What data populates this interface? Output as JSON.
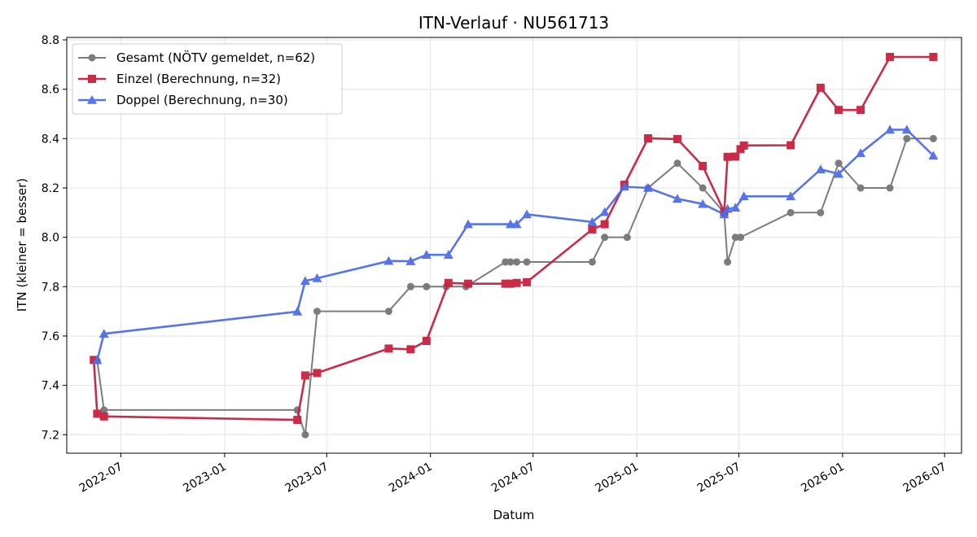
{
  "chart_data": {
    "type": "line",
    "title": "ITN-Verlauf · NU561713",
    "xlabel": "Datum",
    "ylabel": "ITN  (kleiner = besser)",
    "x_axis_type": "date",
    "xlim": [
      "2022-03-27",
      "2026-07-31"
    ],
    "ylim": [
      7.125,
      8.81
    ],
    "x_ticks": [
      "2022-07",
      "2023-01",
      "2023-07",
      "2024-01",
      "2024-07",
      "2025-01",
      "2025-07",
      "2026-01",
      "2026-07"
    ],
    "y_ticks": [
      "7.2",
      "7.4",
      "7.6",
      "7.8",
      "8.0",
      "8.2",
      "8.4",
      "8.6",
      "8.8"
    ],
    "grid": true,
    "legend_position": "top-left",
    "series": [
      {
        "name": "Gesamt (NÖTV gemeldet, n=62)",
        "color": "#666666",
        "marker": "circle",
        "points": [
          {
            "x": "2022-05-20",
            "y": 7.5
          },
          {
            "x": "2022-06-01",
            "y": 7.3
          },
          {
            "x": "2023-05-10",
            "y": 7.3
          },
          {
            "x": "2023-05-24",
            "y": 7.2
          },
          {
            "x": "2023-06-14",
            "y": 7.7
          },
          {
            "x": "2023-10-19",
            "y": 7.7
          },
          {
            "x": "2023-11-27",
            "y": 7.8
          },
          {
            "x": "2023-12-25",
            "y": 7.8
          },
          {
            "x": "2024-01-29",
            "y": 7.8
          },
          {
            "x": "2024-03-04",
            "y": 7.8
          },
          {
            "x": "2024-05-13",
            "y": 7.9
          },
          {
            "x": "2024-05-22",
            "y": 7.9
          },
          {
            "x": "2024-06-02",
            "y": 7.9
          },
          {
            "x": "2024-06-20",
            "y": 7.9
          },
          {
            "x": "2024-10-14",
            "y": 7.9
          },
          {
            "x": "2024-11-05",
            "y": 8.0
          },
          {
            "x": "2024-12-15",
            "y": 8.0
          },
          {
            "x": "2025-01-21",
            "y": 8.2
          },
          {
            "x": "2025-03-14",
            "y": 8.3
          },
          {
            "x": "2025-04-28",
            "y": 8.2
          },
          {
            "x": "2025-06-05",
            "y": 8.1
          },
          {
            "x": "2025-06-11",
            "y": 7.9
          },
          {
            "x": "2025-06-25",
            "y": 8.0
          },
          {
            "x": "2025-07-04",
            "y": 8.0
          },
          {
            "x": "2025-10-01",
            "y": 8.1
          },
          {
            "x": "2025-11-23",
            "y": 8.1
          },
          {
            "x": "2025-12-25",
            "y": 8.3
          },
          {
            "x": "2026-02-02",
            "y": 8.2
          },
          {
            "x": "2026-03-26",
            "y": 8.2
          },
          {
            "x": "2026-04-25",
            "y": 8.4
          },
          {
            "x": "2026-06-11",
            "y": 8.4
          }
        ]
      },
      {
        "name": "Einzel (Berechnung, n=32)",
        "color": "#c8213f",
        "marker": "square",
        "points": [
          {
            "x": "2022-05-14",
            "y": 7.503
          },
          {
            "x": "2022-05-20",
            "y": 7.285
          },
          {
            "x": "2022-06-01",
            "y": 7.274
          },
          {
            "x": "2023-05-10",
            "y": 7.26
          },
          {
            "x": "2023-05-24",
            "y": 7.44
          },
          {
            "x": "2023-06-14",
            "y": 7.45
          },
          {
            "x": "2023-10-19",
            "y": 7.549
          },
          {
            "x": "2023-11-27",
            "y": 7.546
          },
          {
            "x": "2023-12-25",
            "y": 7.58
          },
          {
            "x": "2024-02-02",
            "y": 7.815
          },
          {
            "x": "2024-03-08",
            "y": 7.812
          },
          {
            "x": "2024-05-13",
            "y": 7.812
          },
          {
            "x": "2024-05-22",
            "y": 7.812
          },
          {
            "x": "2024-06-02",
            "y": 7.815
          },
          {
            "x": "2024-06-20",
            "y": 7.818
          },
          {
            "x": "2024-10-14",
            "y": 8.032
          },
          {
            "x": "2024-11-05",
            "y": 8.053
          },
          {
            "x": "2024-12-10",
            "y": 8.213
          },
          {
            "x": "2025-01-21",
            "y": 8.401
          },
          {
            "x": "2025-03-14",
            "y": 8.398
          },
          {
            "x": "2025-04-28",
            "y": 8.289
          },
          {
            "x": "2025-06-05",
            "y": 8.103
          },
          {
            "x": "2025-06-11",
            "y": 8.326
          },
          {
            "x": "2025-06-25",
            "y": 8.327
          },
          {
            "x": "2025-07-04",
            "y": 8.357
          },
          {
            "x": "2025-07-10",
            "y": 8.372
          },
          {
            "x": "2025-10-01",
            "y": 8.373
          },
          {
            "x": "2025-11-23",
            "y": 8.606
          },
          {
            "x": "2025-12-25",
            "y": 8.516
          },
          {
            "x": "2026-02-02",
            "y": 8.516
          },
          {
            "x": "2026-03-26",
            "y": 8.731
          },
          {
            "x": "2026-06-11",
            "y": 8.731
          }
        ]
      },
      {
        "name": "Doppel (Berechnung, n=30)",
        "color": "#4f6de8",
        "marker": "triangle",
        "points": [
          {
            "x": "2022-05-20",
            "y": 7.502
          },
          {
            "x": "2022-06-01",
            "y": 7.609
          },
          {
            "x": "2023-05-10",
            "y": 7.699
          },
          {
            "x": "2023-05-24",
            "y": 7.823
          },
          {
            "x": "2023-06-14",
            "y": 7.834
          },
          {
            "x": "2023-10-19",
            "y": 7.904
          },
          {
            "x": "2023-11-27",
            "y": 7.903
          },
          {
            "x": "2023-12-25",
            "y": 7.929
          },
          {
            "x": "2024-02-02",
            "y": 7.929
          },
          {
            "x": "2024-03-08",
            "y": 8.053
          },
          {
            "x": "2024-05-22",
            "y": 8.053
          },
          {
            "x": "2024-06-02",
            "y": 8.053
          },
          {
            "x": "2024-06-20",
            "y": 8.093
          },
          {
            "x": "2024-10-14",
            "y": 8.062
          },
          {
            "x": "2024-11-05",
            "y": 8.102
          },
          {
            "x": "2024-12-10",
            "y": 8.205
          },
          {
            "x": "2025-01-21",
            "y": 8.2
          },
          {
            "x": "2025-03-14",
            "y": 8.156
          },
          {
            "x": "2025-04-28",
            "y": 8.135
          },
          {
            "x": "2025-06-05",
            "y": 8.093
          },
          {
            "x": "2025-06-11",
            "y": 8.115
          },
          {
            "x": "2025-06-25",
            "y": 8.12
          },
          {
            "x": "2025-07-10",
            "y": 8.166
          },
          {
            "x": "2025-10-01",
            "y": 8.166
          },
          {
            "x": "2025-11-23",
            "y": 8.275
          },
          {
            "x": "2025-12-25",
            "y": 8.257
          },
          {
            "x": "2026-02-02",
            "y": 8.341
          },
          {
            "x": "2026-03-26",
            "y": 8.436
          },
          {
            "x": "2026-04-25",
            "y": 8.436
          },
          {
            "x": "2026-06-11",
            "y": 8.331
          }
        ]
      }
    ]
  }
}
